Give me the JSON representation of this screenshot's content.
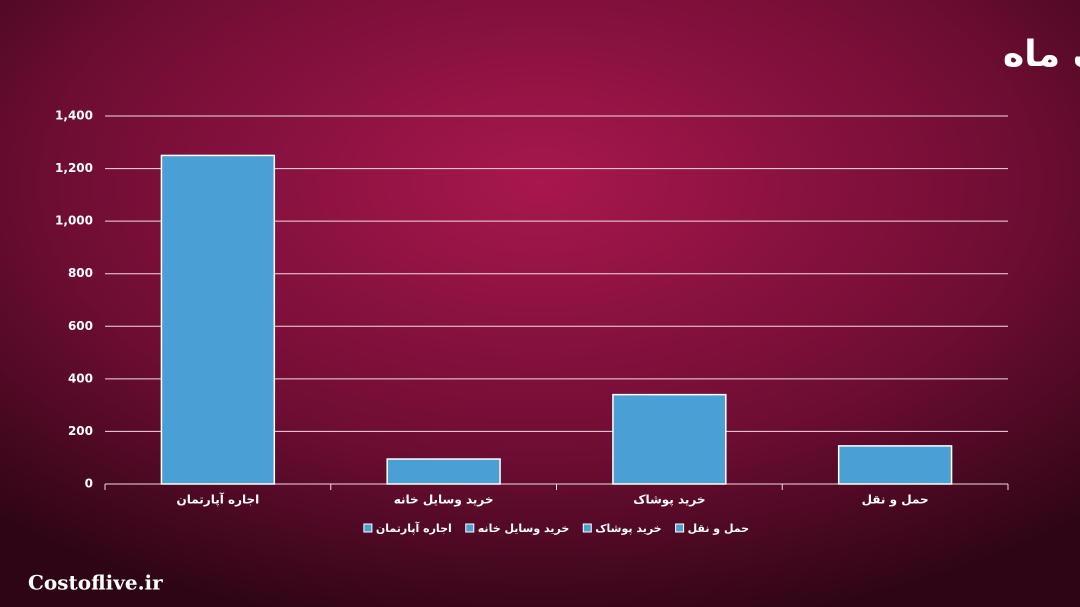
{
  "chart_data": {
    "type": "bar",
    "title": "کلیات هزینه ها برای یک ماه",
    "categories": [
      "اجاره آپارتمان",
      "خرید وسایل خانه",
      "خرید پوشاک",
      "حمل و نقل"
    ],
    "values": [
      1250,
      95,
      340,
      145
    ],
    "color": "#4a9fd4",
    "ylim": [
      0,
      1400
    ],
    "yticks": [
      0,
      200,
      400,
      600,
      800,
      {
        "value": 1000,
        "label": "1,000"
      },
      {
        "value": 1200,
        "label": "1,200"
      },
      {
        "value": 1400,
        "label": "1,400"
      }
    ],
    "grid": true,
    "legend": "bottom"
  },
  "watermark": "Costoflive.ir"
}
